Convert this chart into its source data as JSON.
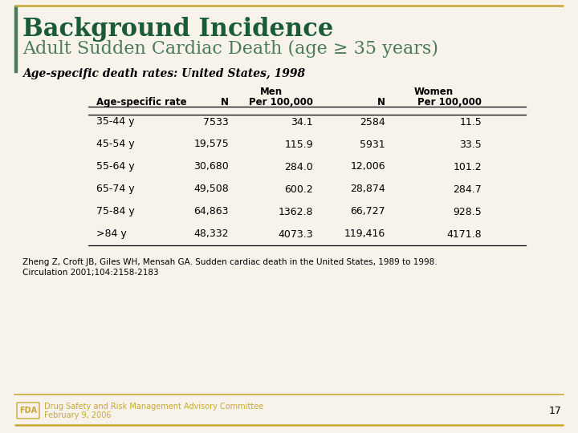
{
  "title_line1": "Background Incidence",
  "title_line2": "Adult Sudden Cardiac Death (age ≥ 35 years)",
  "subtitle": "Age-specific death rates: United States, 1998",
  "col_headers_row1_men": "Men",
  "col_headers_row1_women": "Women",
  "col_headers_row2": [
    "Age-specific rate",
    "N",
    "Per 100,000",
    "N",
    "Per 100,000"
  ],
  "rows": [
    [
      "35-44 y",
      "7533",
      "34.1",
      "2584",
      "11.5"
    ],
    [
      "45-54 y",
      "19,575",
      "115.9",
      "5931",
      "33.5"
    ],
    [
      "55-64 y",
      "30,680",
      "284.0",
      "12,006",
      "101.2"
    ],
    [
      "65-74 y",
      "49,508",
      "600.2",
      "28,874",
      "284.7"
    ],
    [
      "75-84 y",
      "64,863",
      "1362.8",
      "66,727",
      "928.5"
    ],
    [
      ">84 y",
      "48,332",
      "4073.3",
      "119,416",
      "4171.8"
    ]
  ],
  "citation_line1": "Zheng Z, Croft JB, Giles WH, Mensah GA. Sudden cardiac death in the United States, 1989 to 1998.",
  "citation_line2": "Circulation 2001;104:2158-2183",
  "fda_text_line1": "Drug Safety and Risk Management Advisory Committee",
  "fda_text_line2": "February 9, 2006",
  "page_number": "17",
  "bg_color": "#f7f3eb",
  "title1_color": "#1a5c38",
  "title2_color": "#4a7c59",
  "subtitle_color": "#000000",
  "border_color": "#c8a832",
  "table_text_color": "#000000",
  "fda_color": "#c8a832",
  "left_bar_color": "#4a7c59"
}
